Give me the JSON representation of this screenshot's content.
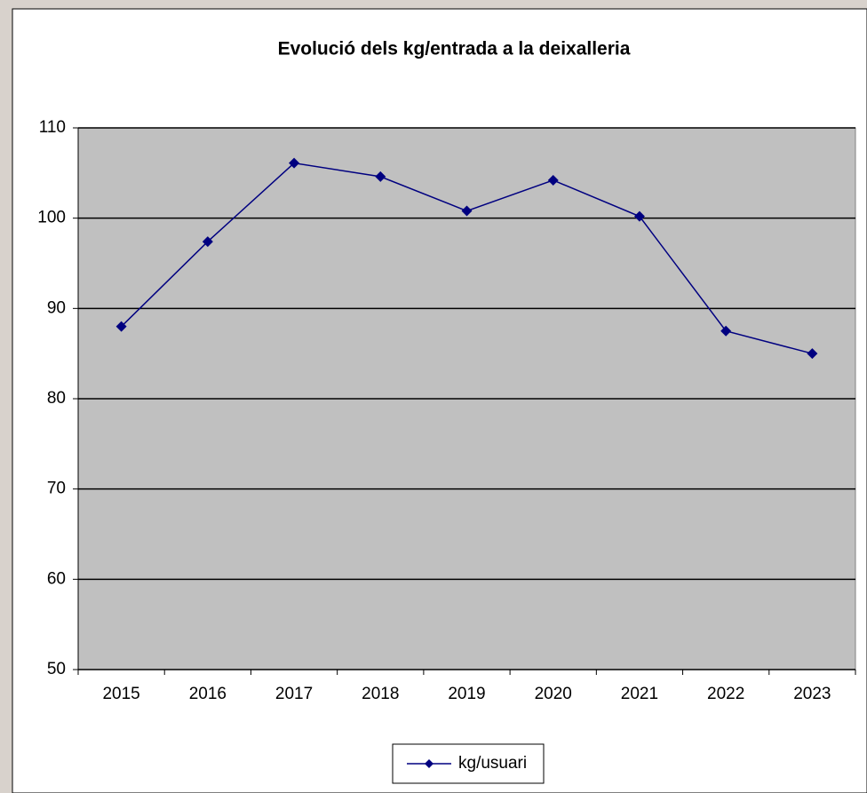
{
  "chart_data": {
    "type": "line",
    "title": "Evolució  dels kg/entrada a la deixalleria",
    "categories": [
      "2015",
      "2016",
      "2017",
      "2018",
      "2019",
      "2020",
      "2021",
      "2022",
      "2023"
    ],
    "series": [
      {
        "name": "kg/usuari",
        "color": "#000080",
        "values": [
          88.0,
          97.4,
          106.1,
          104.6,
          100.8,
          104.2,
          100.2,
          87.5,
          85.0
        ]
      }
    ],
    "ylim": [
      50,
      110
    ],
    "yticks": [
      50,
      60,
      70,
      80,
      90,
      100,
      110
    ],
    "grid": true,
    "legend": "bottom",
    "plot_background": "#c0c0c0"
  }
}
